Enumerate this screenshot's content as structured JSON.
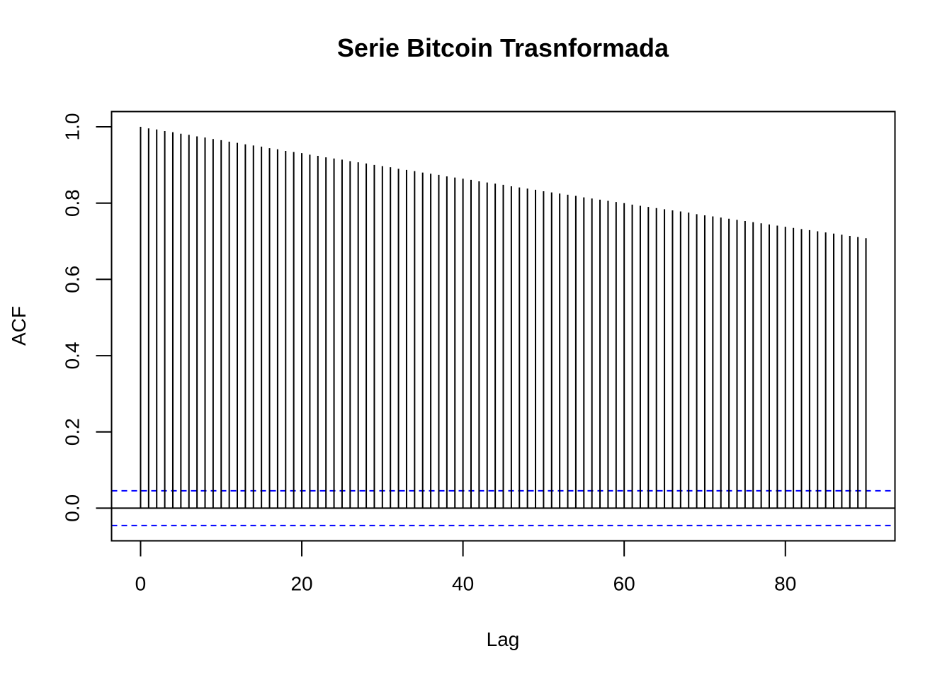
{
  "chart_data": {
    "type": "bar",
    "title": "Serie Bitcoin Trasnformada",
    "xlabel": "Lag",
    "ylabel": "ACF",
    "xlim": [
      -3.6,
      93.6
    ],
    "ylim": [
      -0.0856,
      1.04
    ],
    "x_ticks": [
      0,
      20,
      40,
      60,
      80
    ],
    "x_tick_labels": [
      "0",
      "20",
      "40",
      "60",
      "80"
    ],
    "y_ticks": [
      0.0,
      0.2,
      0.4,
      0.6,
      0.8,
      1.0
    ],
    "y_tick_labels": [
      "0.0",
      "0.2",
      "0.4",
      "0.6",
      "0.8",
      "1.0"
    ],
    "ci_bound": 0.0455,
    "ci_color": "#0000ff",
    "lag_start": 0,
    "lag_end": 90,
    "acf_values": [
      1.0,
      0.996,
      0.993,
      0.989,
      0.986,
      0.982,
      0.979,
      0.975,
      0.972,
      0.968,
      0.965,
      0.961,
      0.958,
      0.954,
      0.951,
      0.948,
      0.944,
      0.941,
      0.937,
      0.934,
      0.931,
      0.927,
      0.924,
      0.92,
      0.917,
      0.914,
      0.91,
      0.907,
      0.904,
      0.9,
      0.897,
      0.894,
      0.89,
      0.887,
      0.884,
      0.88,
      0.877,
      0.874,
      0.87,
      0.867,
      0.864,
      0.861,
      0.857,
      0.854,
      0.851,
      0.848,
      0.844,
      0.841,
      0.838,
      0.835,
      0.831,
      0.828,
      0.825,
      0.822,
      0.819,
      0.815,
      0.812,
      0.809,
      0.806,
      0.803,
      0.8,
      0.796,
      0.793,
      0.79,
      0.787,
      0.784,
      0.781,
      0.778,
      0.775,
      0.771,
      0.768,
      0.765,
      0.762,
      0.759,
      0.756,
      0.753,
      0.75,
      0.747,
      0.744,
      0.741,
      0.738,
      0.735,
      0.732,
      0.729,
      0.726,
      0.723,
      0.72,
      0.717,
      0.714,
      0.711,
      0.708
    ],
    "grid": false,
    "legend": "none"
  }
}
